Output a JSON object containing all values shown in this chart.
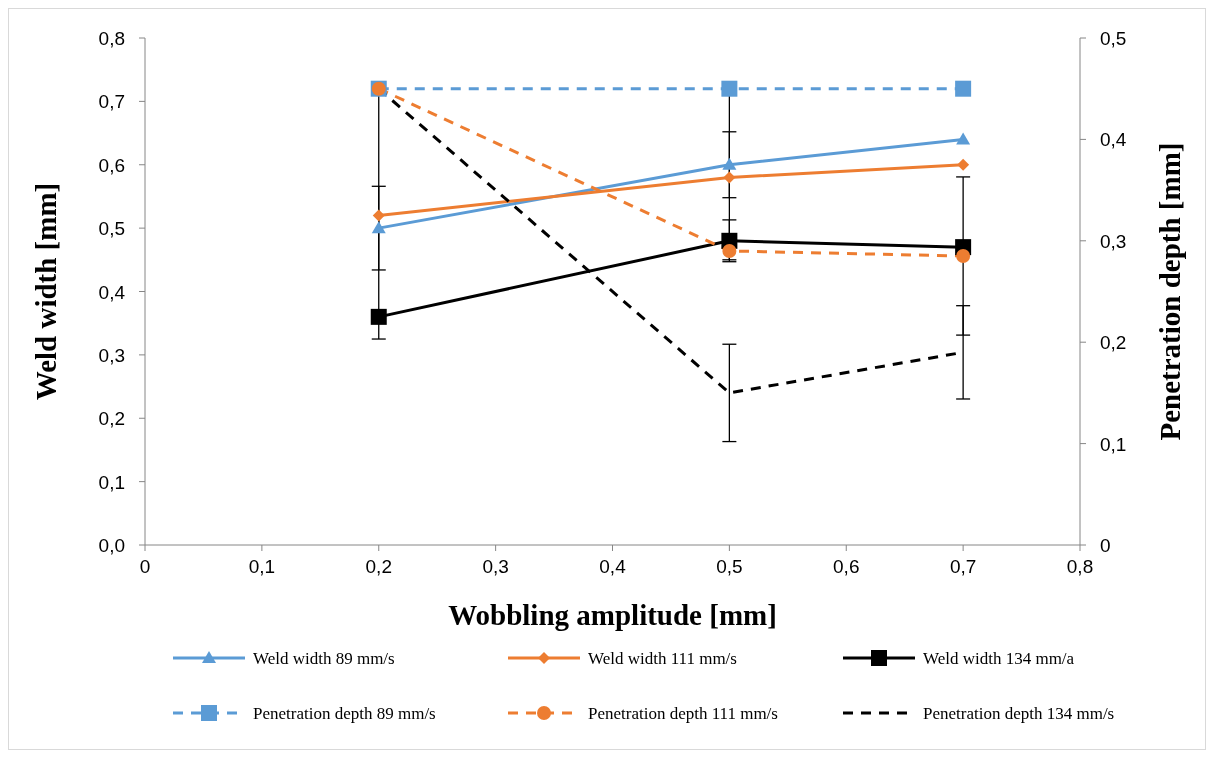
{
  "chart_data": {
    "type": "line",
    "xlabel": "Wobbling amplitude [mm]",
    "ylabel": "Weld width [mm]",
    "y2label": "Penetration depth [mm]",
    "x": [
      0.2,
      0.5,
      0.7
    ],
    "xlim": [
      0,
      0.8
    ],
    "xticks": [
      0,
      {
        "value": 0.1,
        "label": "0,1"
      },
      {
        "value": 0.2,
        "label": "0,2"
      },
      {
        "value": 0.3,
        "label": "0,3"
      },
      {
        "value": 0.4,
        "label": "0,4"
      },
      {
        "value": 0.5,
        "label": "0,5"
      },
      {
        "value": 0.6,
        "label": "0,6"
      },
      {
        "value": 0.7,
        "label": "0,7"
      },
      {
        "value": 0.8,
        "label": "0,8"
      }
    ],
    "ylim": [
      0,
      0.8
    ],
    "yticks": [
      {
        "value": 0,
        "label": "0,0"
      },
      {
        "value": 0.1,
        "label": "0,1"
      },
      {
        "value": 0.2,
        "label": "0,2"
      },
      {
        "value": 0.3,
        "label": "0,3"
      },
      {
        "value": 0.4,
        "label": "0,4"
      },
      {
        "value": 0.5,
        "label": "0,5"
      },
      {
        "value": 0.6,
        "label": "0,6"
      },
      {
        "value": 0.7,
        "label": "0,7"
      },
      {
        "value": 0.8,
        "label": "0,8"
      }
    ],
    "y2lim": [
      0,
      0.5
    ],
    "y2ticks": [
      0,
      {
        "value": 0.1,
        "label": "0,1"
      },
      {
        "value": 0.2,
        "label": "0,2"
      },
      {
        "value": 0.3,
        "label": "0,3"
      },
      {
        "value": 0.4,
        "label": "0,4"
      },
      {
        "value": 0.5,
        "label": "0,5"
      }
    ],
    "grid": false,
    "legend": "bottom",
    "series": [
      {
        "name": "Weld width 89 mm/s",
        "color": "#5b9bd5",
        "values": [
          0.5,
          0.6,
          0.64
        ],
        "errors": [
          0.066,
          0.052,
          null
        ],
        "marker": "triangle",
        "line_style": "solid"
      },
      {
        "name": "Weld width 111 mm/s",
        "color": "#ed7d31",
        "values": [
          0.52,
          0.58,
          0.6
        ],
        "errors": [
          0.195,
          0.13,
          null
        ],
        "marker": "diamond",
        "line_style": "solid"
      },
      {
        "name": "Weld width 134 mm/a",
        "color": "#000000",
        "values": [
          0.36,
          0.48,
          0.47
        ],
        "errors": [
          null,
          0.033,
          null
        ],
        "marker": "square",
        "line_style": "solid"
      },
      {
        "name": "Penetration depth 89 mm/s",
        "color": "#5b9bd5",
        "values": [
          0.45,
          0.45,
          0.45
        ],
        "axis": "y2",
        "marker": "square",
        "line_style": "dashed"
      },
      {
        "name": "Penetration depth 111 mm/s",
        "color": "#ed7d31",
        "values": [
          0.45,
          0.29,
          0.285
        ],
        "errors": [
          null,
          null,
          0.078
        ],
        "axis": "y2",
        "marker": "circle",
        "line_style": "dashed"
      },
      {
        "name": "Penetration depth 134 mm/s",
        "color": "#000000",
        "values": [
          0.45,
          0.15,
          0.19
        ],
        "errors": [
          null,
          0.048,
          0.046
        ],
        "axis": "y2",
        "marker": "none",
        "line_style": "dashed"
      }
    ]
  }
}
